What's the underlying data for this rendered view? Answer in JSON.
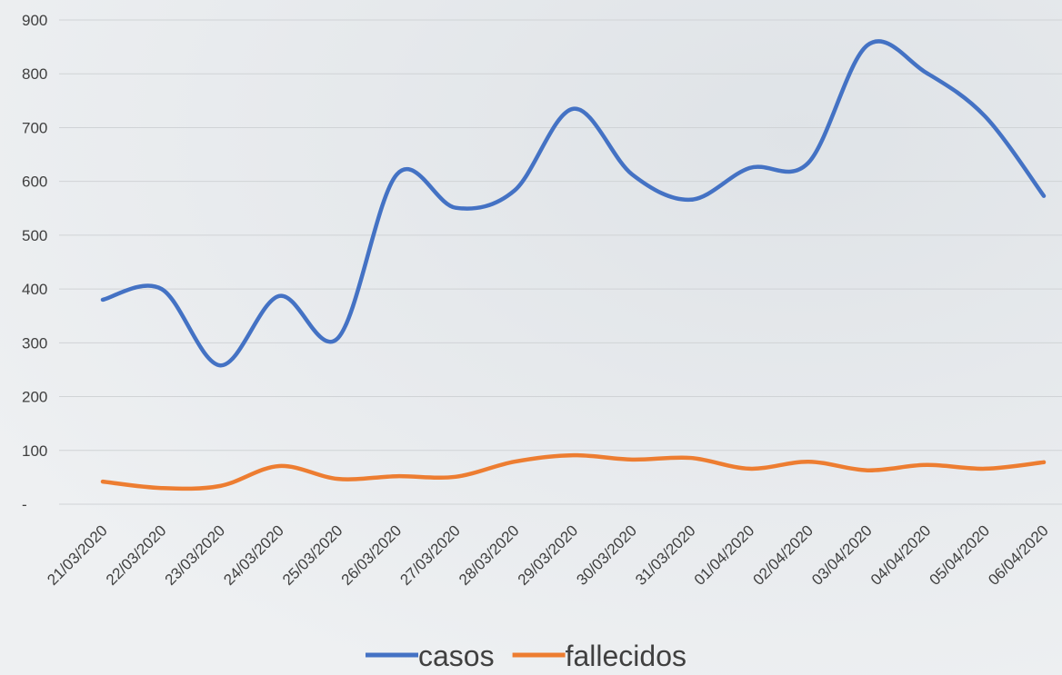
{
  "chart_data": {
    "type": "line",
    "categories": [
      "21/03/2020",
      "22/03/2020",
      "23/03/2020",
      "24/03/2020",
      "25/03/2020",
      "26/03/2020",
      "27/03/2020",
      "28/03/2020",
      "29/03/2020",
      "30/03/2020",
      "31/03/2020",
      "01/04/2020",
      "02/04/2020",
      "03/04/2020",
      "04/04/2020",
      "05/04/2020",
      "06/04/2020"
    ],
    "series": [
      {
        "name": "casos",
        "color": "#4472c4",
        "values": [
          380,
          400,
          258,
          387,
          309,
          613,
          551,
          583,
          735,
          613,
          566,
          625,
          635,
          853,
          802,
          721,
          573
        ]
      },
      {
        "name": "fallecidos",
        "color": "#ed7d31",
        "values": [
          42,
          30,
          34,
          71,
          47,
          52,
          51,
          79,
          91,
          83,
          86,
          66,
          79,
          63,
          73,
          66,
          78
        ]
      }
    ],
    "ylim": [
      0,
      900
    ],
    "yticks": [
      {
        "value": 0,
        "label": "-"
      },
      100,
      200,
      300,
      400,
      500,
      600,
      700,
      800,
      900
    ],
    "grid": true,
    "smooth": true,
    "legend": "bottom"
  }
}
